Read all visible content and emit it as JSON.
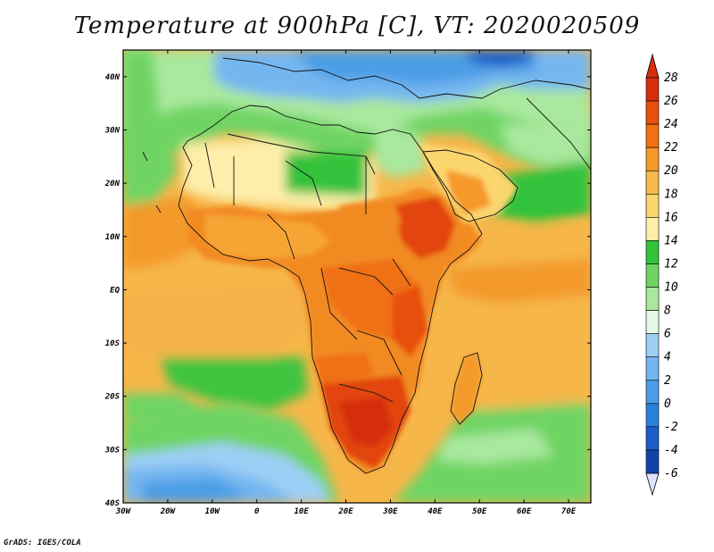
{
  "title": "Temperature at 900hPa [C], VT: 2020020509",
  "footer": "GrADS: IGES/COLA",
  "map": {
    "lat_labels": [
      "40N",
      "30N",
      "20N",
      "10N",
      "EQ",
      "10S",
      "20S",
      "30S",
      "40S"
    ],
    "lat_values": [
      40,
      30,
      20,
      10,
      0,
      -10,
      -20,
      -30,
      -40
    ],
    "lon_labels": [
      "30W",
      "20W",
      "10W",
      "0",
      "10E",
      "20E",
      "30E",
      "40E",
      "50E",
      "60E",
      "70E"
    ],
    "lon_values": [
      -30,
      -20,
      -10,
      0,
      10,
      20,
      30,
      40,
      50,
      60,
      70
    ],
    "lon_range": [
      -30,
      75
    ],
    "lat_range": [
      -40,
      45
    ]
  },
  "colorbar": {
    "labels": [
      "28",
      "26",
      "24",
      "22",
      "20",
      "18",
      "16",
      "14",
      "12",
      "10",
      "8",
      "6",
      "4",
      "2",
      "0",
      "-2",
      "-4",
      "-6"
    ],
    "colors": [
      "#d62e0c",
      "#e8500f",
      "#f07012",
      "#f59a2a",
      "#f8b84a",
      "#fbd56e",
      "#fdeeaa",
      "#33c23a",
      "#6fd464",
      "#a9e89e",
      "#e6f8e6",
      "#9ccff5",
      "#74b6f0",
      "#4c9de6",
      "#2a7fdc",
      "#1a5fc8",
      "#1244a8",
      "#0c1e78"
    ]
  },
  "colors": {
    "ocean_warm": "#f7b64a",
    "ocean_orange": "#f39a2c",
    "ocean_green": "#3fc43f",
    "land_orange": "#f28a22",
    "land_red": "#e2440e",
    "sahara_cream": "#fde8a0",
    "med_blue": "#5aa6ee",
    "south_blue": "#6aaef0"
  }
}
